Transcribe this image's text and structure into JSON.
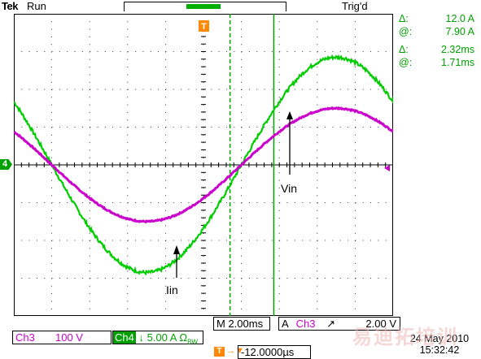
{
  "status": {
    "brand": "Tek",
    "run": "Run",
    "trigger": "Trig'd"
  },
  "trigger_marker": {
    "label": "T"
  },
  "cursor_readouts": [
    {
      "symbol": "Δ:",
      "value": "12.0 A"
    },
    {
      "symbol": "@:",
      "value": "7.90 A"
    },
    {
      "symbol": "Δ:",
      "value": "2.32ms"
    },
    {
      "symbol": "@:",
      "value": "1.71ms"
    }
  ],
  "ch4_marker_label": "4",
  "annotations": {
    "vin": "Vin",
    "iin": "Iin"
  },
  "timebase": "M 2.00ms",
  "trigger_source": {
    "mode": "A",
    "channel": "Ch3",
    "slope": "↗",
    "level": "2.00 V"
  },
  "ch3": {
    "label": "Ch3",
    "scale": "100 V",
    "color": "#cc00cc"
  },
  "ch4": {
    "label": "Ch4",
    "scale": "↓ 5.00 A Ω",
    "suffix": "BW",
    "color": "#00a000"
  },
  "trigger_position": {
    "marker": "T",
    "arrow": "→▼",
    "delay": "-12.0000µs"
  },
  "date": "24 May 2010",
  "time": "15:32:42",
  "watermark": "易迪拓培训",
  "waveform_colors": {
    "vin": "#cc00cc",
    "iin": "#00cc00",
    "cursor": "#00a000",
    "grid": "#000000"
  },
  "chart_data": {
    "type": "line",
    "x_unit": "ms",
    "xlim": [
      -12.0,
      8.0
    ],
    "ylim": [
      -4,
      4
    ],
    "x_divisions": 10,
    "y_divisions": 8,
    "grid": true,
    "series": [
      {
        "name": "Vin",
        "amplitude_div": 1.5,
        "period_ms": 20.0,
        "zero_cross_ms": 0.0
      },
      {
        "name": "Iin",
        "amplitude_div": 2.85,
        "period_ms": 20.0,
        "zero_cross_ms": 0.0
      }
    ],
    "time_cursors_ms": [
      -0.6,
      1.71
    ],
    "amplitude_cursor_A": 7.9
  }
}
